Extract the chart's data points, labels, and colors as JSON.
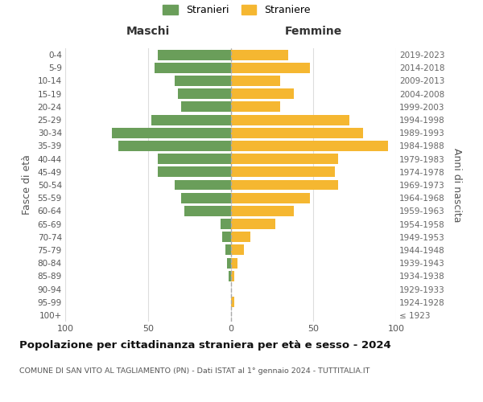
{
  "age_groups": [
    "100+",
    "95-99",
    "90-94",
    "85-89",
    "80-84",
    "75-79",
    "70-74",
    "65-69",
    "60-64",
    "55-59",
    "50-54",
    "45-49",
    "40-44",
    "35-39",
    "30-34",
    "25-29",
    "20-24",
    "15-19",
    "10-14",
    "5-9",
    "0-4"
  ],
  "birth_years": [
    "≤ 1923",
    "1924-1928",
    "1929-1933",
    "1934-1938",
    "1939-1943",
    "1944-1948",
    "1949-1953",
    "1954-1958",
    "1959-1963",
    "1964-1968",
    "1969-1973",
    "1974-1978",
    "1979-1983",
    "1984-1988",
    "1989-1993",
    "1994-1998",
    "1999-2003",
    "2004-2008",
    "2009-2013",
    "2014-2018",
    "2019-2023"
  ],
  "maschi": [
    0,
    0,
    0,
    1,
    2,
    3,
    5,
    6,
    28,
    30,
    34,
    44,
    44,
    68,
    72,
    48,
    30,
    32,
    34,
    46,
    44
  ],
  "femmine": [
    0,
    2,
    0,
    2,
    4,
    8,
    12,
    27,
    38,
    48,
    65,
    63,
    65,
    95,
    80,
    72,
    30,
    38,
    30,
    48,
    35
  ],
  "maschi_color": "#6a9e5a",
  "femmine_color": "#f5b731",
  "background_color": "#ffffff",
  "grid_color": "#dddddd",
  "title": "Popolazione per cittadinanza straniera per età e sesso - 2024",
  "subtitle": "COMUNE DI SAN VITO AL TAGLIAMENTO (PN) - Dati ISTAT al 1° gennaio 2024 - TUTTITALIA.IT",
  "xlabel_left": "Maschi",
  "xlabel_right": "Femmine",
  "ylabel_left": "Fasce di età",
  "ylabel_right": "Anni di nascita",
  "xlim": 100,
  "legend_stranieri": "Stranieri",
  "legend_straniere": "Straniere"
}
